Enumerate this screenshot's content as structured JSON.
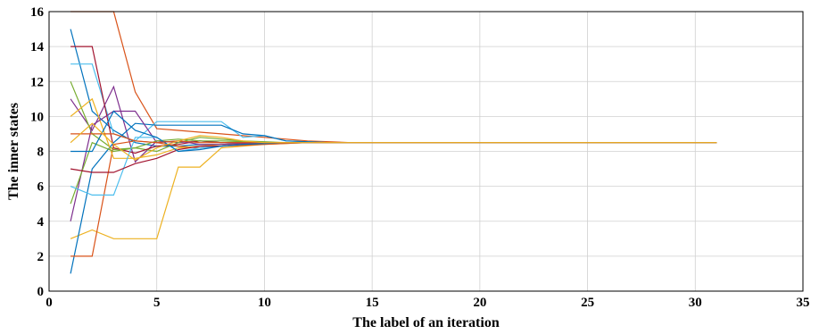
{
  "chart_data": {
    "type": "line",
    "title": "",
    "xlabel": "The label of an iteration",
    "ylabel": "The inner states",
    "xlim": [
      0,
      35
    ],
    "ylim": [
      0,
      16
    ],
    "xticks": [
      0,
      5,
      10,
      15,
      20,
      25,
      30,
      35
    ],
    "yticks": [
      0,
      2,
      4,
      6,
      8,
      10,
      12,
      14,
      16
    ],
    "grid": true,
    "series": [
      {
        "color": "#0072bd",
        "x": [
          1,
          2,
          3,
          4,
          5,
          6,
          7,
          8,
          9,
          10,
          11,
          12,
          13,
          14,
          15,
          31
        ],
        "y": [
          15,
          10.3,
          9.2,
          8.5,
          8.3,
          8.3,
          8.4,
          8.4,
          8.45,
          8.45,
          8.5,
          8.5,
          8.5,
          8.5,
          8.5,
          8.5
        ]
      },
      {
        "color": "#d95319",
        "x": [
          1,
          2,
          3,
          4,
          5,
          6,
          7,
          8,
          9,
          10,
          11,
          12,
          13,
          14,
          15,
          31
        ],
        "y": [
          16,
          16,
          16,
          11.4,
          9.3,
          9.2,
          9.1,
          9.0,
          8.9,
          8.8,
          8.7,
          8.6,
          8.55,
          8.5,
          8.5,
          8.5
        ]
      },
      {
        "color": "#edb120",
        "x": [
          1,
          2,
          3,
          4,
          5,
          6,
          7,
          8,
          9,
          10,
          11,
          12,
          13,
          14,
          15,
          31
        ],
        "y": [
          3,
          3.5,
          3.0,
          3.0,
          3.0,
          7.1,
          7.1,
          8.2,
          8.3,
          8.4,
          8.45,
          8.5,
          8.5,
          8.5,
          8.5,
          8.5
        ]
      },
      {
        "color": "#7e2f8e",
        "x": [
          1,
          2,
          3,
          4,
          5,
          6,
          7,
          8,
          9,
          10,
          11,
          12,
          13,
          14,
          15,
          31
        ],
        "y": [
          11,
          9.2,
          11.7,
          7.4,
          8.6,
          8.5,
          8.6,
          8.5,
          8.5,
          8.5,
          8.5,
          8.5,
          8.5,
          8.5,
          8.5,
          8.5
        ]
      },
      {
        "color": "#77ac30",
        "x": [
          1,
          2,
          3,
          4,
          5,
          6,
          7,
          8,
          9,
          10,
          11,
          12,
          13,
          14,
          15,
          31
        ],
        "y": [
          12,
          9.0,
          8.1,
          8.2,
          8.0,
          8.5,
          8.8,
          8.7,
          8.6,
          8.55,
          8.5,
          8.5,
          8.5,
          8.5,
          8.5,
          8.5
        ]
      },
      {
        "color": "#4dbeee",
        "x": [
          1,
          2,
          3,
          4,
          5,
          6,
          7,
          8,
          9,
          10,
          11,
          12,
          13,
          14,
          15,
          31
        ],
        "y": [
          13,
          13,
          9.0,
          8.6,
          9.7,
          9.7,
          9.7,
          9.7,
          8.8,
          8.9,
          8.6,
          8.55,
          8.5,
          8.5,
          8.5,
          8.5
        ]
      },
      {
        "color": "#a2142f",
        "x": [
          1,
          2,
          3,
          4,
          5,
          6,
          7,
          8,
          9,
          10,
          11,
          12,
          13,
          14,
          15,
          31
        ],
        "y": [
          14,
          14,
          8.2,
          7.9,
          8.3,
          8.4,
          8.6,
          8.5,
          8.5,
          8.5,
          8.5,
          8.5,
          8.5,
          8.5,
          8.5,
          8.5
        ]
      },
      {
        "color": "#0072bd",
        "x": [
          1,
          2,
          3,
          4,
          5,
          6,
          7,
          8,
          9,
          10,
          11,
          12,
          13,
          14,
          15,
          31
        ],
        "y": [
          1,
          7.0,
          8.5,
          9.6,
          9.5,
          9.5,
          9.5,
          9.5,
          9.0,
          8.9,
          8.6,
          8.55,
          8.5,
          8.5,
          8.5,
          8.5
        ]
      },
      {
        "color": "#d95319",
        "x": [
          1,
          2,
          3,
          4,
          5,
          6,
          7,
          8,
          9,
          10,
          11,
          12,
          13,
          14,
          15,
          31
        ],
        "y": [
          2,
          2,
          8.4,
          8.6,
          8.5,
          8.3,
          8.2,
          8.3,
          8.35,
          8.4,
          8.45,
          8.5,
          8.5,
          8.5,
          8.5,
          8.5
        ]
      },
      {
        "color": "#edb120",
        "x": [
          1,
          2,
          3,
          4,
          5,
          6,
          7,
          8,
          9,
          10,
          11,
          12,
          13,
          14,
          15,
          31
        ],
        "y": [
          10,
          11,
          7.6,
          7.6,
          7.8,
          8.2,
          8.3,
          8.4,
          8.4,
          8.45,
          8.5,
          8.5,
          8.5,
          8.5,
          8.5,
          8.5
        ]
      },
      {
        "color": "#7e2f8e",
        "x": [
          1,
          2,
          3,
          4,
          5,
          6,
          7,
          8,
          9,
          10,
          11,
          12,
          13,
          14,
          15,
          31
        ],
        "y": [
          4,
          9.5,
          10.3,
          10.3,
          8.5,
          8.6,
          8.4,
          8.4,
          8.45,
          8.45,
          8.5,
          8.5,
          8.5,
          8.5,
          8.5,
          8.5
        ]
      },
      {
        "color": "#77ac30",
        "x": [
          1,
          2,
          3,
          4,
          5,
          6,
          7,
          8,
          9,
          10,
          11,
          12,
          13,
          14,
          15,
          31
        ],
        "y": [
          5,
          8.5,
          8.0,
          8.2,
          8.6,
          8.7,
          8.6,
          8.6,
          8.55,
          8.5,
          8.5,
          8.5,
          8.5,
          8.5,
          8.5,
          8.5
        ]
      },
      {
        "color": "#4dbeee",
        "x": [
          1,
          2,
          3,
          4,
          5,
          6,
          7,
          8,
          9,
          10,
          11,
          12,
          13,
          14,
          15,
          31
        ],
        "y": [
          6,
          5.5,
          5.5,
          8.8,
          8.8,
          8.0,
          8.2,
          8.3,
          8.4,
          8.45,
          8.5,
          8.5,
          8.5,
          8.5,
          8.5,
          8.5
        ]
      },
      {
        "color": "#a2142f",
        "x": [
          1,
          2,
          3,
          4,
          5,
          6,
          7,
          8,
          9,
          10,
          11,
          12,
          13,
          14,
          15,
          31
        ],
        "y": [
          7,
          6.8,
          6.8,
          7.3,
          7.6,
          8.1,
          8.3,
          8.3,
          8.4,
          8.45,
          8.5,
          8.5,
          8.5,
          8.5,
          8.5,
          8.5
        ]
      },
      {
        "color": "#0072bd",
        "x": [
          1,
          2,
          3,
          4,
          5,
          6,
          7,
          8,
          9,
          10,
          11,
          12,
          13,
          14,
          15,
          31
        ],
        "y": [
          8,
          8.0,
          10.3,
          9.2,
          8.8,
          8.0,
          8.1,
          8.3,
          8.4,
          8.45,
          8.5,
          8.5,
          8.5,
          8.5,
          8.5,
          8.5
        ]
      },
      {
        "color": "#d95319",
        "x": [
          1,
          2,
          3,
          4,
          5,
          6,
          7,
          8,
          9,
          10,
          11,
          12,
          13,
          14,
          15,
          31
        ],
        "y": [
          9,
          9.0,
          9.0,
          8.6,
          8.5,
          8.6,
          8.5,
          8.5,
          8.5,
          8.5,
          8.5,
          8.5,
          8.5,
          8.5,
          8.5,
          8.5
        ]
      },
      {
        "color": "#edb120",
        "x": [
          1,
          2,
          3,
          4,
          5,
          6,
          7,
          8,
          9,
          10,
          11,
          12,
          13,
          14,
          15,
          31
        ],
        "y": [
          8.5,
          9.6,
          8.4,
          7.5,
          8.2,
          8.6,
          8.9,
          8.8,
          8.6,
          8.5,
          8.5,
          8.5,
          8.5,
          8.5,
          8.5,
          8.5
        ]
      }
    ]
  }
}
